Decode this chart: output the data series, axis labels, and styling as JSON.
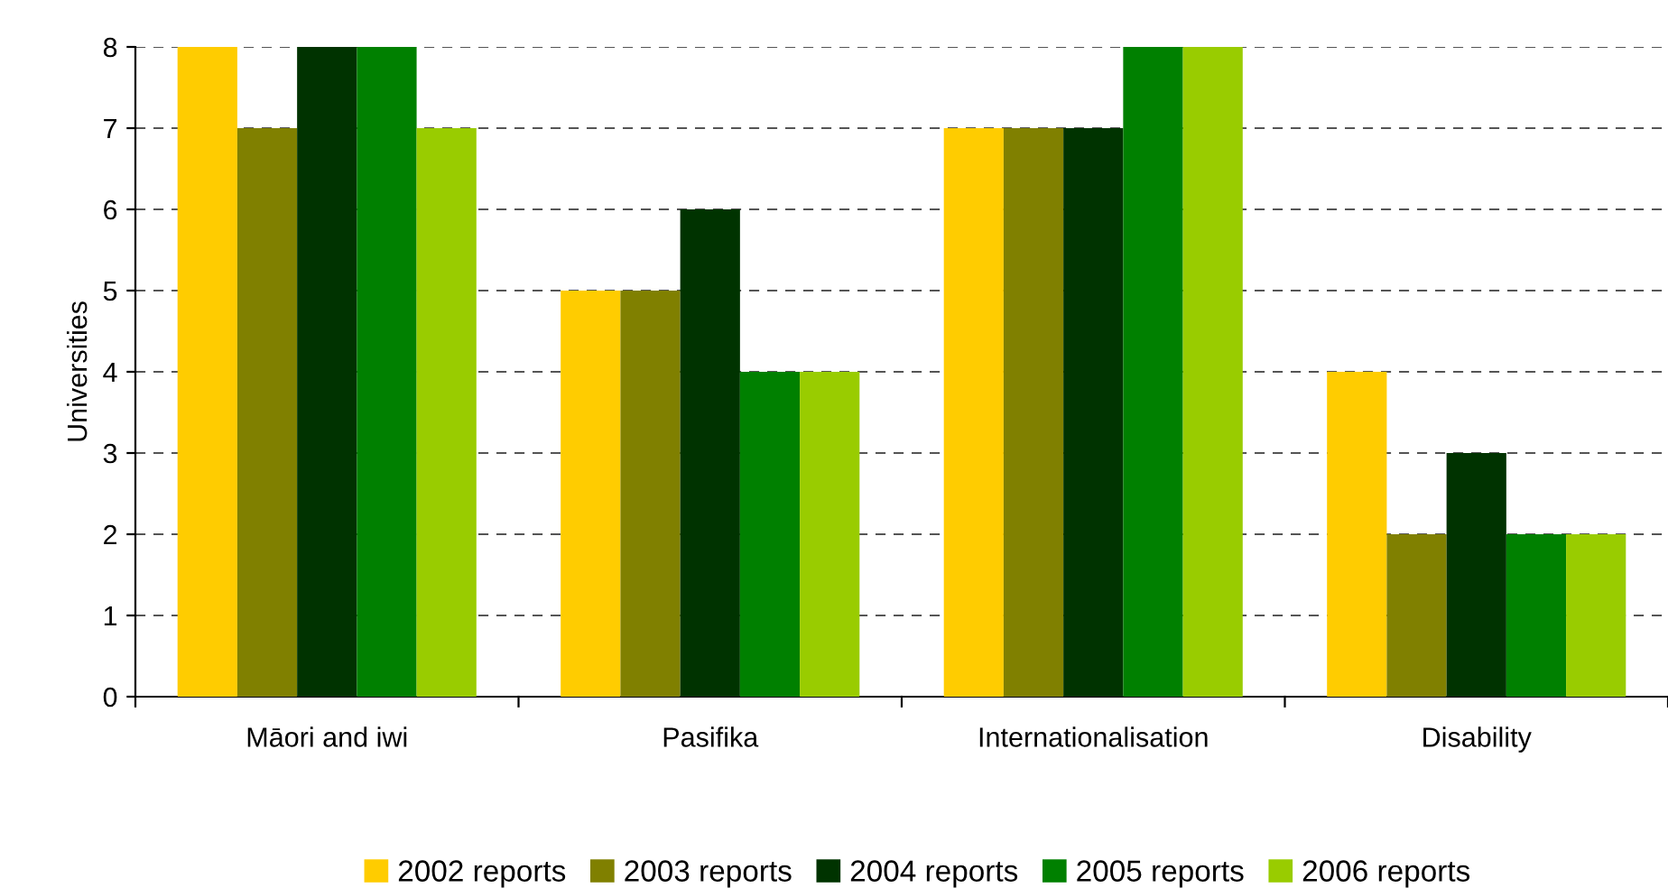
{
  "chart_data": {
    "type": "bar",
    "ylabel": "Universities",
    "categories": [
      "Māori and iwi",
      "Pasifika",
      "Internationalisation",
      "Disability"
    ],
    "series": [
      {
        "name": "2002 reports",
        "color": "#ffcc00",
        "values": [
          8,
          5,
          7,
          4
        ]
      },
      {
        "name": "2003 reports",
        "color": "#808000",
        "values": [
          7,
          5,
          7,
          2
        ]
      },
      {
        "name": "2004 reports",
        "color": "#003300",
        "values": [
          8,
          6,
          7,
          3
        ]
      },
      {
        "name": "2005 reports",
        "color": "#008000",
        "values": [
          8,
          4,
          8,
          2
        ]
      },
      {
        "name": "2006 reports",
        "color": "#99cc00",
        "values": [
          7,
          4,
          8,
          2
        ]
      }
    ],
    "ylim": [
      0,
      8
    ],
    "yticks": [
      0,
      1,
      2,
      3,
      4,
      5,
      6,
      7,
      8
    ],
    "grid": "y",
    "legend": "bottom"
  }
}
